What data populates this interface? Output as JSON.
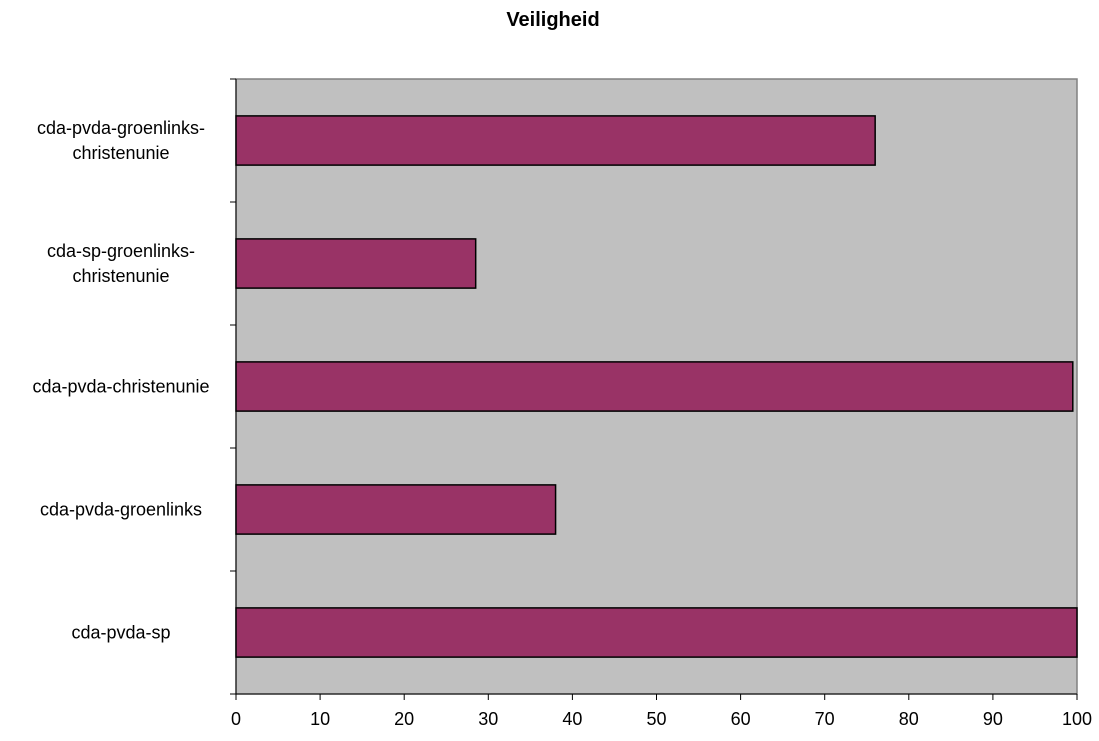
{
  "chart_data": {
    "type": "bar",
    "orientation": "horizontal",
    "title": "Veiligheid",
    "xlabel": "",
    "ylabel": "",
    "categories": [
      [
        "cda-pvda-groenlinks-",
        "christenunie"
      ],
      [
        "cda-sp-groenlinks-",
        "christenunie"
      ],
      [
        "cda-pvda-christenunie"
      ],
      [
        "cda-pvda-groenlinks"
      ],
      [
        "cda-pvda-sp"
      ]
    ],
    "values": [
      76,
      28.5,
      99.5,
      38,
      100
    ],
    "xlim": [
      0,
      100
    ],
    "xticks": [
      "0",
      "10",
      "20",
      "30",
      "40",
      "50",
      "60",
      "70",
      "80",
      "90",
      "100"
    ],
    "grid": false,
    "legend": "none",
    "colors": {
      "bar_fill": "#993366",
      "bar_stroke": "#000000",
      "plot_background": "#c0c0c0",
      "plot_border": "#808080",
      "axis": "#000000",
      "text": "#000000"
    }
  }
}
